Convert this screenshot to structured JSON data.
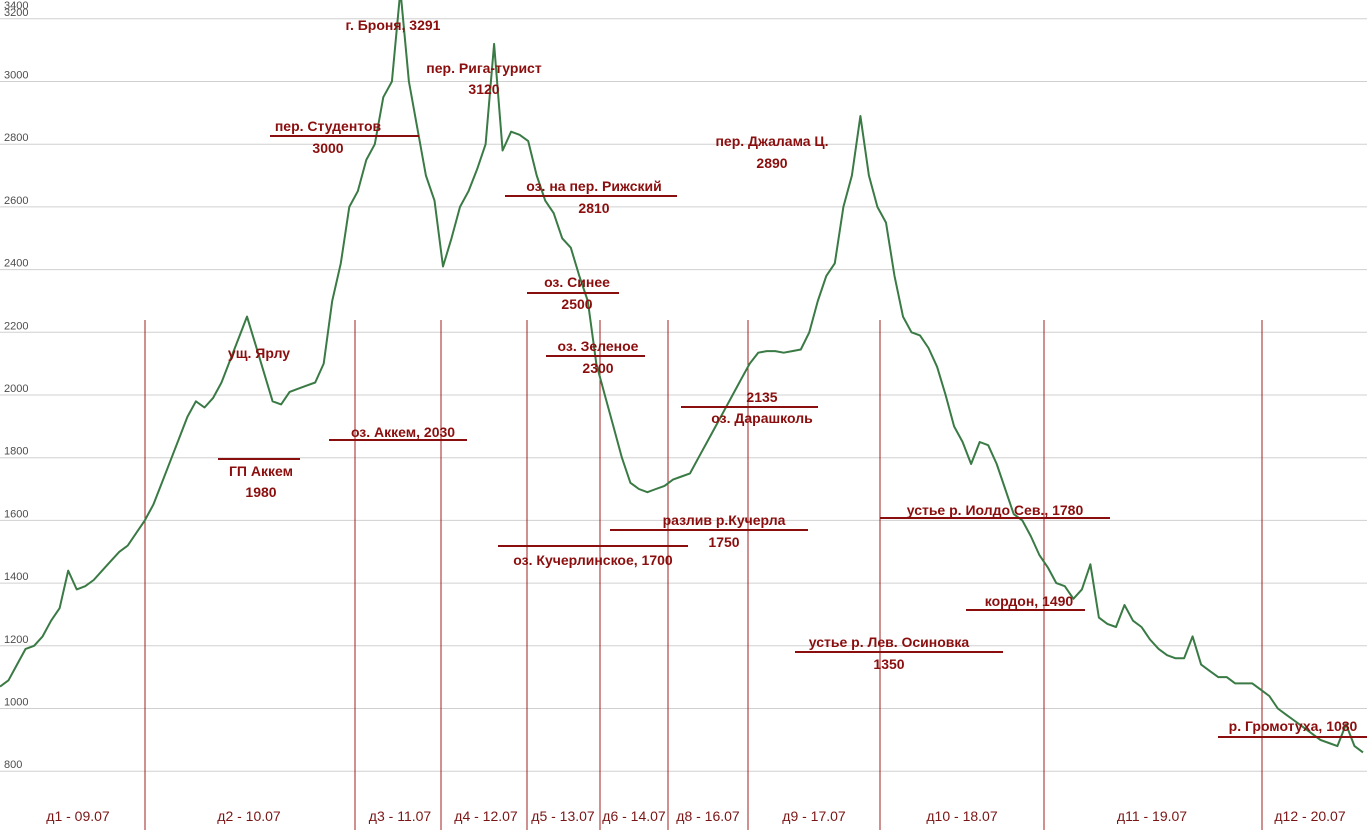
{
  "chart_data": {
    "type": "line",
    "title": "",
    "xlabel": "",
    "ylabel": "",
    "ylim": [
      800,
      3400
    ],
    "yticks": [
      800,
      1000,
      1200,
      1400,
      1600,
      1800,
      2000,
      2200,
      2400,
      2600,
      2800,
      3000,
      3200,
      3400
    ],
    "grid": true,
    "legend": "none",
    "line_color": "#3a7a45",
    "annotation_color": "#8b0e0e",
    "series": [
      {
        "values": [
          1070,
          1090,
          1140,
          1190,
          1200,
          1230,
          1280,
          1320,
          1440,
          1380,
          1390,
          1410,
          1440,
          1470,
          1500,
          1520,
          1560,
          1600,
          1650,
          1720,
          1790,
          1860,
          1930,
          1980,
          1960,
          1990,
          2040,
          2110,
          2180,
          2250,
          2160,
          2070,
          1980,
          1970,
          2010,
          2020,
          2030,
          2040,
          2100,
          2300,
          2420,
          2600,
          2650,
          2750,
          2800,
          2950,
          3000,
          3291,
          3000,
          2850,
          2700,
          2620,
          2410,
          2500,
          2600,
          2650,
          2720,
          2800,
          3120,
          2780,
          2840,
          2830,
          2810,
          2700,
          2620,
          2580,
          2500,
          2470,
          2380,
          2300,
          2100,
          2000,
          1900,
          1800,
          1720,
          1700,
          1690,
          1700,
          1710,
          1730,
          1740,
          1750,
          1800,
          1850,
          1900,
          1950,
          2000,
          2050,
          2100,
          2135,
          2140,
          2140,
          2135,
          2140,
          2145,
          2200,
          2300,
          2380,
          2420,
          2600,
          2700,
          2890,
          2700,
          2600,
          2550,
          2380,
          2250,
          2200,
          2190,
          2150,
          2090,
          2000,
          1900,
          1850,
          1780,
          1850,
          1840,
          1780,
          1700,
          1620,
          1600,
          1550,
          1490,
          1450,
          1400,
          1390,
          1350,
          1380,
          1460,
          1290,
          1270,
          1260,
          1330,
          1280,
          1260,
          1220,
          1190,
          1170,
          1160,
          1160,
          1230,
          1140,
          1120,
          1100,
          1100,
          1080,
          1080,
          1080,
          1060,
          1040,
          1000,
          980,
          960,
          940,
          920,
          900,
          890,
          880,
          950,
          880,
          860
        ],
        "keypoints": [
          {
            "x": "д2 - 10.07",
            "elevation": 1980
          },
          {
            "x": "д3 - 11.07",
            "elevation": 3291
          },
          {
            "x": "д4 - 12.07",
            "elevation": 3120
          },
          {
            "x": "д5 - 13.07",
            "elevation": 2500
          },
          {
            "x": "д6 - 14.07",
            "elevation": 1700
          },
          {
            "x": "д9 - 17.07",
            "elevation": 2890
          },
          {
            "x": "д10 - 18.07",
            "elevation": 1780
          },
          {
            "x": "д12 - 20.07",
            "elevation": 1080
          }
        ]
      }
    ],
    "days": [
      "д1 - 09.07",
      "д2 - 10.07",
      "д3 - 11.07",
      "д4 - 12.07",
      "д5 - 13.07",
      "д6 - 14.07",
      "д8 - 16.07",
      "д9 - 17.07",
      "д10 - 18.07",
      "д11 - 19.07",
      "д12 - 20.07"
    ],
    "annotations": [
      {
        "text": "ущ. Ярлу",
        "elevation": 2250
      },
      {
        "text": "ГП Аккем",
        "value": "1980",
        "elevation": 1980
      },
      {
        "text": "оз. Аккем, 2030",
        "elevation": 2030
      },
      {
        "text": "пер. Студентов",
        "value": "3000",
        "elevation": 3000
      },
      {
        "text": "г. Броня, 3291",
        "elevation": 3291
      },
      {
        "text": "пер. Рига-турист",
        "value": "3120",
        "elevation": 3120
      },
      {
        "text": "оз. на пер. Рижский",
        "value": "2810",
        "elevation": 2810
      },
      {
        "text": "оз. Синее",
        "value": "2500",
        "elevation": 2500
      },
      {
        "text": "оз. Зеленое",
        "value": "2300",
        "elevation": 2300
      },
      {
        "text": "оз. Кучерлинское, 1700",
        "elevation": 1700
      },
      {
        "text": "разлив р.Кучерла",
        "value": "1750",
        "elevation": 1750
      },
      {
        "text": "оз. Дарашколь",
        "value": "2135",
        "elevation": 2135
      },
      {
        "text": "пер. Джалама Ц.",
        "value": "2890",
        "elevation": 2890
      },
      {
        "text": "устье р. Иолдо Сев., 1780",
        "elevation": 1780
      },
      {
        "text": "кордон, 1490",
        "elevation": 1490
      },
      {
        "text": "устье р. Лев. Осиновка",
        "value": "1350",
        "elevation": 1350
      },
      {
        "text": "р. Громотуха, 1080",
        "elevation": 1080
      }
    ]
  }
}
